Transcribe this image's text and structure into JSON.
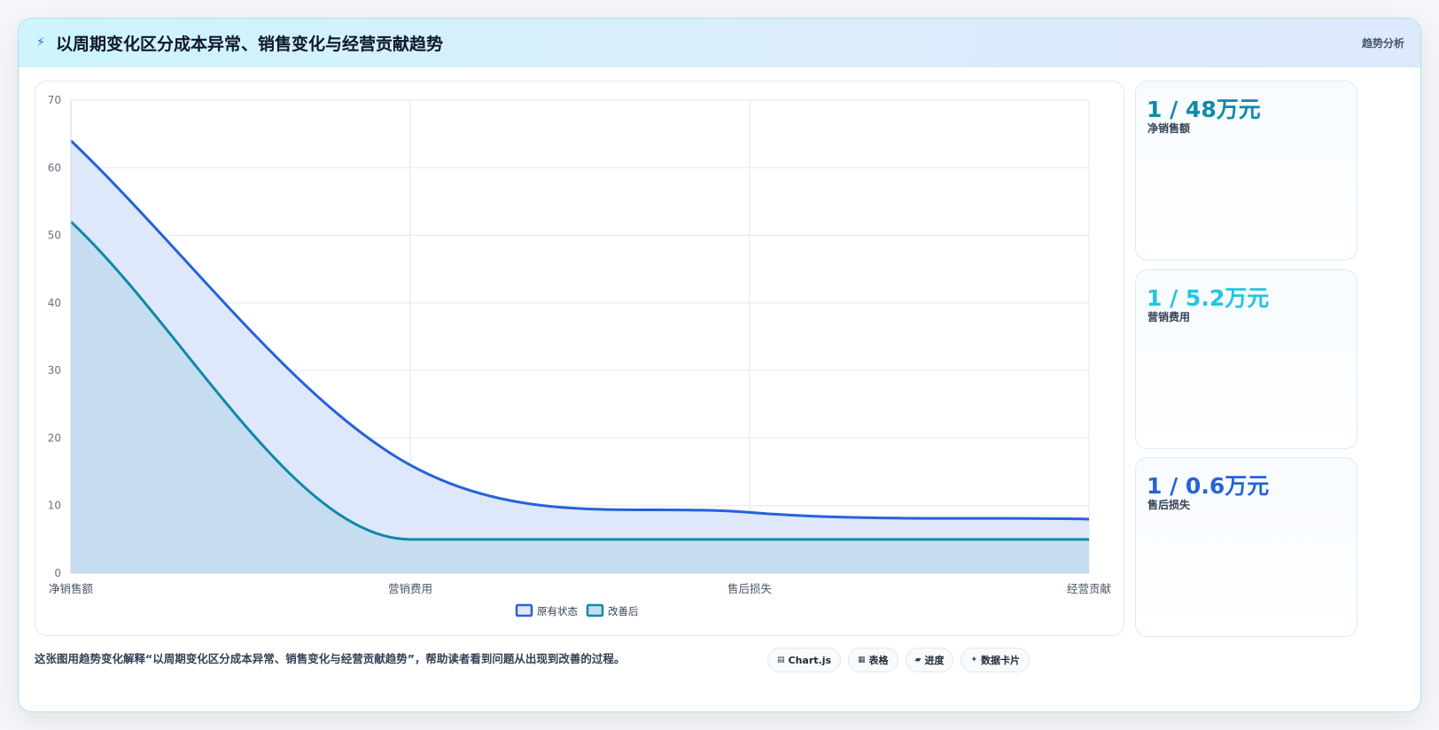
{
  "header": {
    "title": "以周期变化区分成本异常、销售变化与经营贡献趋势",
    "tag": "趋势分析"
  },
  "chart_data": {
    "type": "area",
    "categories": [
      "净销售额",
      "营销费用",
      "售后损失",
      "经营贡献"
    ],
    "series": [
      {
        "name": "原有状态",
        "values": [
          64,
          16,
          9,
          8
        ],
        "color": "#2563d9",
        "fill": "#dfe8fa"
      },
      {
        "name": "改善后",
        "values": [
          52,
          5,
          5,
          5
        ],
        "color": "#0e8aa8",
        "fill": "#c5dcf1"
      }
    ],
    "ylim": [
      0,
      70
    ],
    "yticks": [
      0,
      10,
      20,
      30,
      40,
      50,
      60,
      70
    ],
    "grid": true,
    "legend_position": "bottom"
  },
  "cards": [
    {
      "value": "1 / 48万元",
      "label": "净销售额",
      "color": "#0e8aa8"
    },
    {
      "value": "1 / 5.2万元",
      "label": "营销费用",
      "color": "#22c5e0"
    },
    {
      "value": "1 / 0.6万元",
      "label": "售后损失",
      "color": "#2563d9"
    }
  ],
  "caption": "这张图用趋势变化解释“以周期变化区分成本异常、销售变化与经营贡献趋势”，帮助读者看到问题从出现到改善的过程。",
  "pills": [
    {
      "icon": "▤",
      "label": "Chart.js"
    },
    {
      "icon": "▦",
      "label": "表格"
    },
    {
      "icon": "▰",
      "label": "进度"
    },
    {
      "icon": "✦",
      "label": "数据卡片"
    }
  ]
}
